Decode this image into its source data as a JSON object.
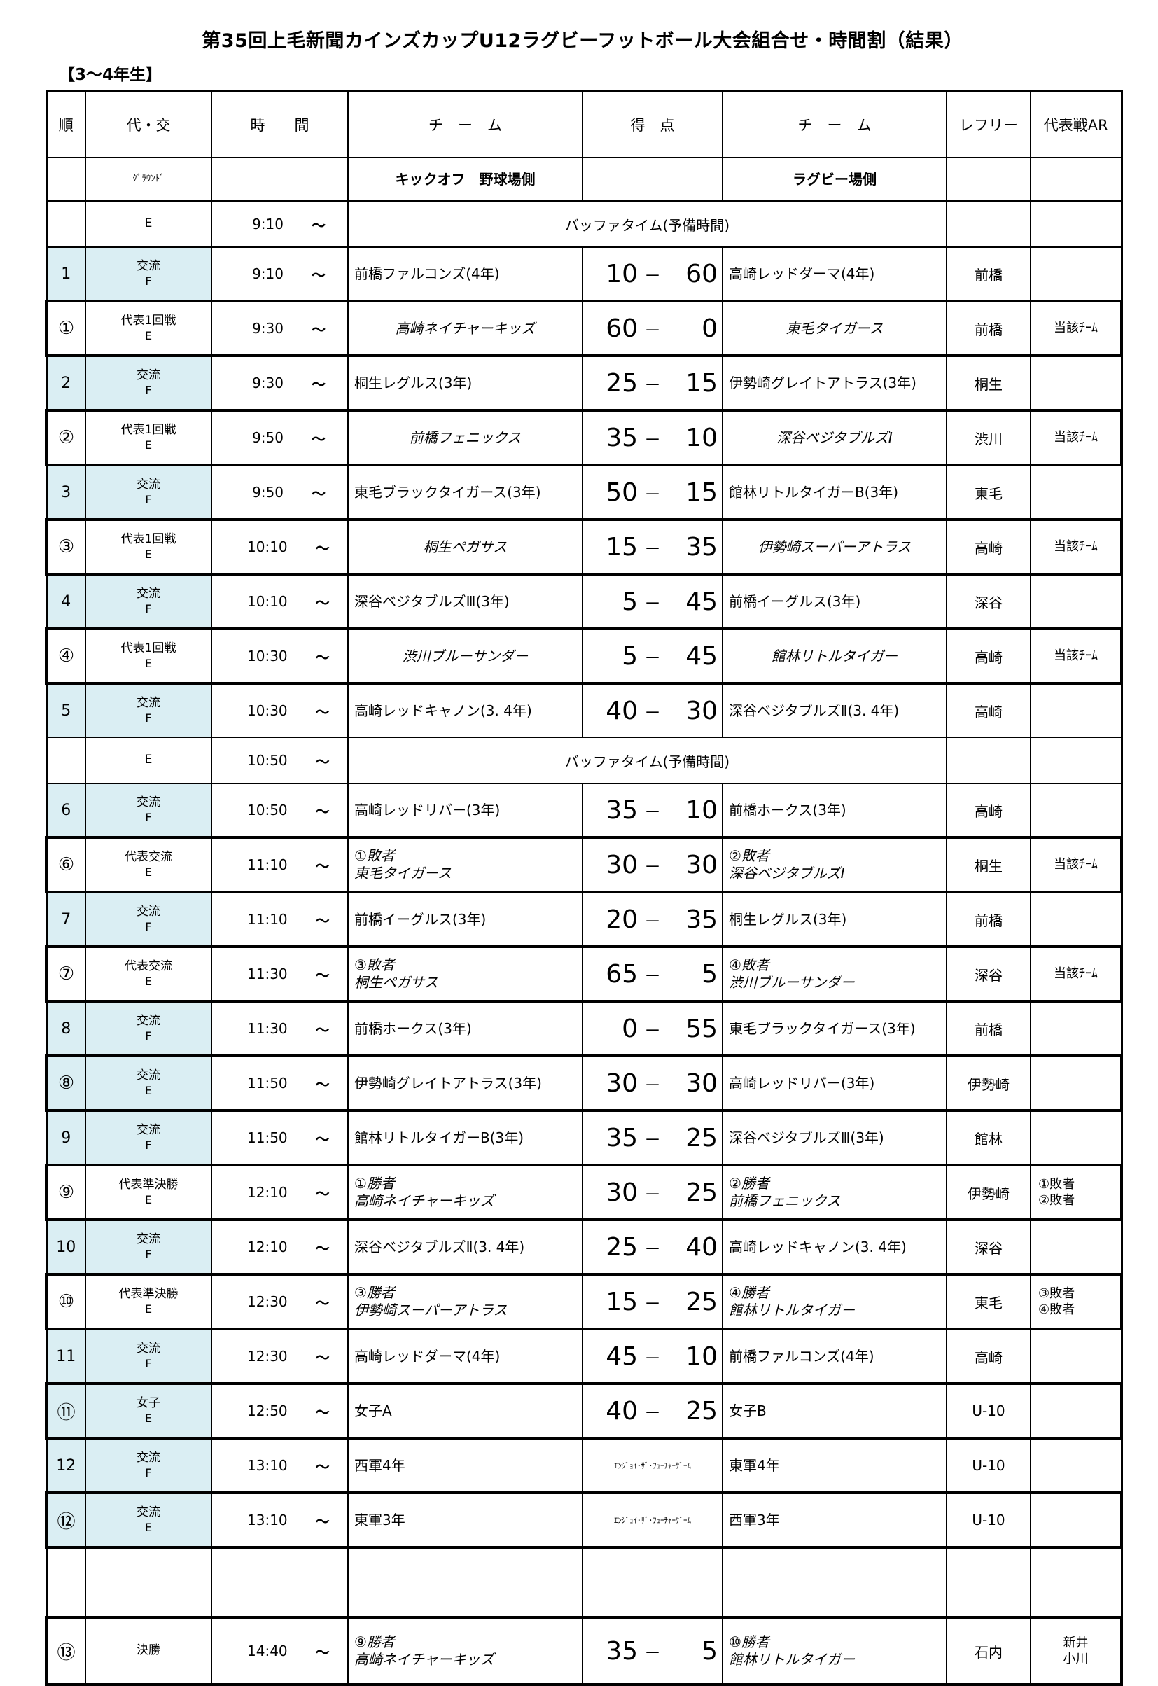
{
  "title": "第35回上毛新聞カインズカップU12ラグビーフットボール大会組合せ・時間割（結果）",
  "subtitle": "【3～4年生】",
  "table": {
    "columns": [
      "順",
      "代・交",
      "時　　間",
      "チ　ー　ム",
      "得　点",
      "チ　ー　ム",
      "レフリー",
      "代表戦AR"
    ],
    "tilde": "～",
    "score_dash": "－",
    "rows": [
      {
        "kind": "ground",
        "ground_label": "ｸﾞﾗｳﾝﾄﾞ",
        "kickoff_label": "キックオフ　野球場側",
        "rugby_label": "ラグビー場側"
      },
      {
        "kind": "buffer",
        "code": "E",
        "time": "9:10",
        "label": "バッファタイム(予備時間)"
      },
      {
        "kind": "match",
        "no": "1",
        "circ": false,
        "type1": "交流",
        "type2": "F",
        "time": "9:10",
        "home": [
          "前橋ファルコンズ(4年)"
        ],
        "score_l": "10",
        "score_r": "60",
        "away": [
          "高崎レッドダーマ(4年)"
        ],
        "referee": "前橋",
        "ar": [],
        "blue": true,
        "thick": false,
        "italic": false,
        "center": false
      },
      {
        "kind": "match",
        "no": "①",
        "circ": true,
        "type1": "代表1回戦",
        "type2": "E",
        "time": "9:30",
        "home": [
          "高崎ネイチャーキッズ"
        ],
        "score_l": "60",
        "score_r": "0",
        "away": [
          "東毛タイガース"
        ],
        "referee": "前橋",
        "ar": [
          "当該ﾁｰﾑ"
        ],
        "blue": false,
        "thick": true,
        "italic": true,
        "center": true
      },
      {
        "kind": "match",
        "no": "2",
        "circ": false,
        "type1": "交流",
        "type2": "F",
        "time": "9:30",
        "home": [
          "桐生レグルス(3年)"
        ],
        "score_l": "25",
        "score_r": "15",
        "away": [
          "伊勢崎グレイトアトラス(3年)"
        ],
        "referee": "桐生",
        "ar": [],
        "blue": true,
        "thick": false,
        "italic": false,
        "center": false
      },
      {
        "kind": "match",
        "no": "②",
        "circ": true,
        "type1": "代表1回戦",
        "type2": "E",
        "time": "9:50",
        "home": [
          "前橋フェニックス"
        ],
        "score_l": "35",
        "score_r": "10",
        "away": [
          "深谷ベジタブルズⅠ"
        ],
        "referee": "渋川",
        "ar": [
          "当該ﾁｰﾑ"
        ],
        "blue": false,
        "thick": true,
        "italic": true,
        "center": true
      },
      {
        "kind": "match",
        "no": "3",
        "circ": false,
        "type1": "交流",
        "type2": "F",
        "time": "9:50",
        "home": [
          "東毛ブラックタイガース(3年)"
        ],
        "score_l": "50",
        "score_r": "15",
        "away": [
          "館林リトルタイガーB(3年)"
        ],
        "referee": "東毛",
        "ar": [],
        "blue": true,
        "thick": false,
        "italic": false,
        "center": false
      },
      {
        "kind": "match",
        "no": "③",
        "circ": true,
        "type1": "代表1回戦",
        "type2": "E",
        "time": "10:10",
        "home": [
          "桐生ペガサス"
        ],
        "score_l": "15",
        "score_r": "35",
        "away": [
          "伊勢崎スーパーアトラス"
        ],
        "referee": "高崎",
        "ar": [
          "当該ﾁｰﾑ"
        ],
        "blue": false,
        "thick": true,
        "italic": true,
        "center": true
      },
      {
        "kind": "match",
        "no": "4",
        "circ": false,
        "type1": "交流",
        "type2": "F",
        "time": "10:10",
        "home": [
          "深谷ベジタブルズⅢ(3年)"
        ],
        "score_l": "5",
        "score_r": "45",
        "away": [
          "前橋イーグルス(3年)"
        ],
        "referee": "深谷",
        "ar": [],
        "blue": true,
        "thick": false,
        "italic": false,
        "center": false
      },
      {
        "kind": "match",
        "no": "④",
        "circ": true,
        "type1": "代表1回戦",
        "type2": "E",
        "time": "10:30",
        "home": [
          "渋川ブルーサンダー"
        ],
        "score_l": "5",
        "score_r": "45",
        "away": [
          "館林リトルタイガー"
        ],
        "referee": "高崎",
        "ar": [
          "当該ﾁｰﾑ"
        ],
        "blue": false,
        "thick": true,
        "italic": true,
        "center": true
      },
      {
        "kind": "match",
        "no": "5",
        "circ": false,
        "type1": "交流",
        "type2": "F",
        "time": "10:30",
        "home": [
          "高崎レッドキャノン(3. 4年)"
        ],
        "score_l": "40",
        "score_r": "30",
        "away": [
          "深谷ベジタブルズⅡ(3. 4年)"
        ],
        "referee": "高崎",
        "ar": [],
        "blue": true,
        "thick": false,
        "italic": false,
        "center": false
      },
      {
        "kind": "buffer",
        "code": "E",
        "time": "10:50",
        "label": "バッファタイム(予備時間)"
      },
      {
        "kind": "match",
        "no": "6",
        "circ": false,
        "type1": "交流",
        "type2": "F",
        "time": "10:50",
        "home": [
          "高崎レッドリバー(3年)"
        ],
        "score_l": "35",
        "score_r": "10",
        "away": [
          "前橋ホークス(3年)"
        ],
        "referee": "高崎",
        "ar": [],
        "blue": true,
        "thick": false,
        "italic": false,
        "center": false
      },
      {
        "kind": "match",
        "no": "⑥",
        "circ": true,
        "type1": "代表交流",
        "type2": "E",
        "time": "11:10",
        "home": [
          "①敗者",
          "東毛タイガース"
        ],
        "score_l": "30",
        "score_r": "30",
        "away": [
          "②敗者",
          "深谷ベジタブルズⅠ"
        ],
        "referee": "桐生",
        "ar": [
          "当該ﾁｰﾑ"
        ],
        "blue": false,
        "thick": true,
        "italic": true,
        "center": false
      },
      {
        "kind": "match",
        "no": "7",
        "circ": false,
        "type1": "交流",
        "type2": "F",
        "time": "11:10",
        "home": [
          "前橋イーグルス(3年)"
        ],
        "score_l": "20",
        "score_r": "35",
        "away": [
          "桐生レグルス(3年)"
        ],
        "referee": "前橋",
        "ar": [],
        "blue": true,
        "thick": false,
        "italic": false,
        "center": false
      },
      {
        "kind": "match",
        "no": "⑦",
        "circ": true,
        "type1": "代表交流",
        "type2": "E",
        "time": "11:30",
        "home": [
          "③敗者",
          "桐生ペガサス"
        ],
        "score_l": "65",
        "score_r": "5",
        "away": [
          "④敗者",
          "渋川ブルーサンダー"
        ],
        "referee": "深谷",
        "ar": [
          "当該ﾁｰﾑ"
        ],
        "blue": false,
        "thick": true,
        "italic": true,
        "center": false
      },
      {
        "kind": "match",
        "no": "8",
        "circ": false,
        "type1": "交流",
        "type2": "F",
        "time": "11:30",
        "home": [
          "前橋ホークス(3年)"
        ],
        "score_l": "0",
        "score_r": "55",
        "away": [
          "東毛ブラックタイガース(3年)"
        ],
        "referee": "前橋",
        "ar": [],
        "blue": true,
        "thick": false,
        "italic": false,
        "center": false
      },
      {
        "kind": "match",
        "no": "⑧",
        "circ": true,
        "type1": "交流",
        "type2": "E",
        "time": "11:50",
        "home": [
          "伊勢崎グレイトアトラス(3年)"
        ],
        "score_l": "30",
        "score_r": "30",
        "away": [
          "高崎レッドリバー(3年)"
        ],
        "referee": "伊勢崎",
        "ar": [],
        "blue": true,
        "thick": true,
        "italic": false,
        "center": false
      },
      {
        "kind": "match",
        "no": "9",
        "circ": false,
        "type1": "交流",
        "type2": "F",
        "time": "11:50",
        "home": [
          "館林リトルタイガーB(3年)"
        ],
        "score_l": "35",
        "score_r": "25",
        "away": [
          "深谷ベジタブルズⅢ(3年)"
        ],
        "referee": "館林",
        "ar": [],
        "blue": true,
        "thick": false,
        "italic": false,
        "center": false
      },
      {
        "kind": "match",
        "no": "⑨",
        "circ": true,
        "type1": "代表準決勝",
        "type2": "E",
        "time": "12:10",
        "home": [
          "①勝者",
          "高崎ネイチャーキッズ"
        ],
        "score_l": "30",
        "score_r": "25",
        "away": [
          "②勝者",
          "前橋フェニックス"
        ],
        "referee": "伊勢崎",
        "ar": [
          "①敗者",
          "②敗者"
        ],
        "ar_left": true,
        "blue": false,
        "thick": true,
        "italic": true,
        "center": false
      },
      {
        "kind": "match",
        "no": "10",
        "circ": false,
        "type1": "交流",
        "type2": "F",
        "time": "12:10",
        "home": [
          "深谷ベジタブルズⅡ(3. 4年)"
        ],
        "score_l": "25",
        "score_r": "40",
        "away": [
          "高崎レッドキャノン(3. 4年)"
        ],
        "referee": "深谷",
        "ar": [],
        "blue": true,
        "thick": false,
        "italic": false,
        "center": false
      },
      {
        "kind": "match",
        "no": "⑩",
        "circ": true,
        "type1": "代表準決勝",
        "type2": "E",
        "time": "12:30",
        "home": [
          "③勝者",
          "伊勢崎スーパーアトラス"
        ],
        "score_l": "15",
        "score_r": "25",
        "away": [
          "④勝者",
          "館林リトルタイガー"
        ],
        "referee": "東毛",
        "ar": [
          "③敗者",
          "④敗者"
        ],
        "ar_left": true,
        "blue": false,
        "thick": true,
        "italic": true,
        "center": false
      },
      {
        "kind": "match",
        "no": "11",
        "circ": false,
        "type1": "交流",
        "type2": "F",
        "time": "12:30",
        "home": [
          "高崎レッドダーマ(4年)"
        ],
        "score_l": "45",
        "score_r": "10",
        "away": [
          "前橋ファルコンズ(4年)"
        ],
        "referee": "高崎",
        "ar": [],
        "blue": true,
        "thick": false,
        "italic": false,
        "center": false
      },
      {
        "kind": "match",
        "no": "⑪",
        "circ": true,
        "type1": "女子",
        "type2": "E",
        "time": "12:50",
        "home": [
          "女子A"
        ],
        "score_l": "40",
        "score_r": "25",
        "away": [
          "女子B"
        ],
        "referee": "U-10",
        "ar": [],
        "blue": true,
        "thick": true,
        "italic": false,
        "center": false
      },
      {
        "kind": "match",
        "no": "12",
        "circ": false,
        "type1": "交流",
        "type2": "F",
        "time": "13:10",
        "home": [
          "西軍4年"
        ],
        "score_text": "ｴﾝｼﾞｮｲ･ｻﾞ･ﾌｭｰﾁｬｰｹﾞｰﾑ",
        "away": [
          "東軍4年"
        ],
        "referee": "U-10",
        "ar": [],
        "blue": true,
        "thick": false,
        "italic": false,
        "center": false
      },
      {
        "kind": "match",
        "no": "⑫",
        "circ": true,
        "type1": "交流",
        "type2": "E",
        "time": "13:10",
        "home": [
          "東軍3年"
        ],
        "score_text": "ｴﾝｼﾞｮｲ･ｻﾞ･ﾌｭｰﾁｬｰｹﾞｰﾑ",
        "away": [
          "西軍3年"
        ],
        "referee": "U-10",
        "ar": [],
        "blue": true,
        "thick": true,
        "italic": false,
        "center": false
      },
      {
        "kind": "blank"
      },
      {
        "kind": "match",
        "no": "⑬",
        "circ": true,
        "final": true,
        "type1": "決勝",
        "type2": "",
        "time": "14:40",
        "home": [
          "⑨勝者",
          "高崎ネイチャーキッズ"
        ],
        "score_l": "35",
        "score_r": "5",
        "away": [
          "⑩勝者",
          "館林リトルタイガー"
        ],
        "referee": "石内",
        "ar": [
          "新井",
          "小川"
        ],
        "blue": false,
        "thick": true,
        "italic": true,
        "center": false
      }
    ]
  }
}
